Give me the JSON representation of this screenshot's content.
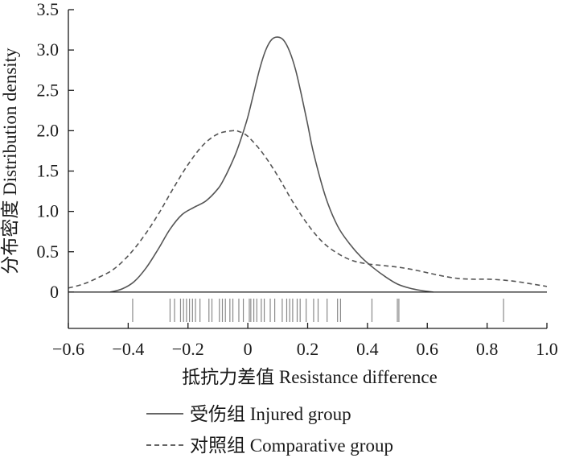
{
  "chart_data": {
    "type": "line",
    "xlabel": "抵抗力差值 Resistance difference",
    "ylabel": "分布密度 Distribution density",
    "xlim": [
      -0.6,
      1.0
    ],
    "ylim": [
      -0.45,
      3.5
    ],
    "x_ticks": [
      "−0.6",
      "−0.4",
      "−0.2",
      "0",
      "0.2",
      "0.4",
      "0.6",
      "0.8",
      "1.0"
    ],
    "x_tick_values": [
      -0.6,
      -0.4,
      -0.2,
      0,
      0.2,
      0.4,
      0.6,
      0.8,
      1.0
    ],
    "y_ticks": [
      "0",
      "0.5",
      "1.0",
      "1.5",
      "2.0",
      "2.5",
      "3.0",
      "3.5"
    ],
    "y_tick_values": [
      0,
      0.5,
      1.0,
      1.5,
      2.0,
      2.5,
      3.0,
      3.5
    ],
    "grid": false,
    "legend_position": "bottom",
    "series": [
      {
        "name": "受伤组 Injured group",
        "style": "solid",
        "color": "#555555",
        "x": [
          -0.46,
          -0.42,
          -0.38,
          -0.34,
          -0.3,
          -0.26,
          -0.22,
          -0.18,
          -0.14,
          -0.1,
          -0.08,
          -0.06,
          -0.04,
          -0.02,
          0.0,
          0.02,
          0.04,
          0.06,
          0.08,
          0.1,
          0.12,
          0.14,
          0.16,
          0.18,
          0.2,
          0.22,
          0.26,
          0.3,
          0.34,
          0.38,
          0.42,
          0.46,
          0.5,
          0.54,
          0.58,
          0.62
        ],
        "y": [
          0.0,
          0.04,
          0.13,
          0.3,
          0.53,
          0.78,
          0.96,
          1.05,
          1.13,
          1.28,
          1.4,
          1.55,
          1.72,
          1.93,
          2.17,
          2.47,
          2.77,
          3.0,
          3.13,
          3.16,
          3.12,
          2.98,
          2.75,
          2.43,
          2.08,
          1.72,
          1.18,
          0.82,
          0.6,
          0.43,
          0.3,
          0.19,
          0.1,
          0.05,
          0.02,
          0.0
        ]
      },
      {
        "name": "对照组 Comparative group",
        "style": "dashed",
        "color": "#555555",
        "x": [
          -0.6,
          -0.55,
          -0.5,
          -0.45,
          -0.4,
          -0.35,
          -0.3,
          -0.25,
          -0.2,
          -0.15,
          -0.1,
          -0.05,
          -0.03,
          0.0,
          0.05,
          0.1,
          0.15,
          0.2,
          0.25,
          0.3,
          0.35,
          0.4,
          0.45,
          0.5,
          0.55,
          0.6,
          0.65,
          0.7,
          0.75,
          0.8,
          0.85,
          0.9,
          0.95,
          1.0
        ],
        "y": [
          0.05,
          0.1,
          0.18,
          0.28,
          0.45,
          0.68,
          0.96,
          1.28,
          1.58,
          1.82,
          1.96,
          2.0,
          1.99,
          1.93,
          1.72,
          1.44,
          1.12,
          0.84,
          0.62,
          0.48,
          0.39,
          0.35,
          0.33,
          0.31,
          0.28,
          0.24,
          0.2,
          0.17,
          0.16,
          0.16,
          0.15,
          0.13,
          0.1,
          0.07
        ]
      }
    ],
    "rug": [
      -0.385,
      -0.26,
      -0.245,
      -0.225,
      -0.215,
      -0.205,
      -0.195,
      -0.185,
      -0.175,
      -0.16,
      -0.13,
      -0.12,
      -0.095,
      -0.085,
      -0.075,
      -0.06,
      -0.05,
      -0.03,
      -0.015,
      0.005,
      0.01,
      0.02,
      0.03,
      0.045,
      0.055,
      0.075,
      0.09,
      0.115,
      0.13,
      0.14,
      0.15,
      0.165,
      0.175,
      0.195,
      0.22,
      0.235,
      0.265,
      0.3,
      0.31,
      0.415,
      0.5,
      0.505,
      0.855
    ]
  }
}
